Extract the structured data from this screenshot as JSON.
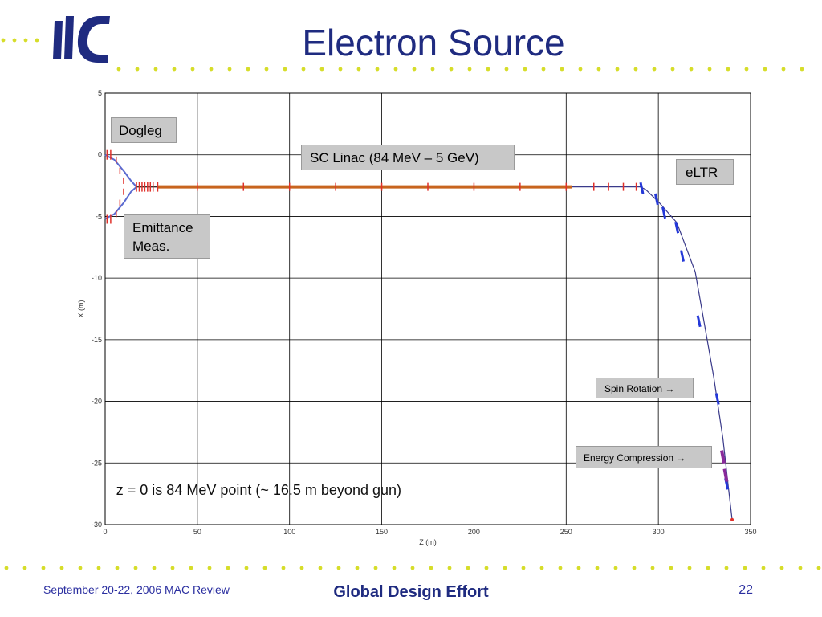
{
  "slide": {
    "title": "Electron Source",
    "logo_text": "ilc",
    "footer": {
      "date_text": "September 20-22, 2006     MAC Review",
      "center_text": "Global Design Effort",
      "page_number": "22"
    },
    "colors": {
      "title": "#1f2b80",
      "logo": "#1f2b80",
      "dots": "#d6dd2a",
      "beamline": "#c8641e",
      "magnet_red": "#e0302a",
      "magnet_blue": "#2438d8",
      "magnet_purple": "#8a2a9a",
      "label_bg": "#c8c8c8"
    }
  },
  "chart_data": {
    "type": "line",
    "title": "",
    "xlabel": "Z (m)",
    "ylabel": "X (m)",
    "xlim": [
      0,
      350
    ],
    "ylim": [
      -30,
      5
    ],
    "xticks": [
      0,
      50,
      100,
      150,
      200,
      250,
      300,
      350
    ],
    "yticks": [
      5,
      0,
      -5,
      -10,
      -15,
      -20,
      -25,
      -30
    ],
    "grid": true,
    "annotation": "z = 0 is 84 MeV point (~ 16.5 m beyond gun)",
    "labels": [
      {
        "text": "Dogleg"
      },
      {
        "text": "SC Linac (84 MeV – 5 GeV)"
      },
      {
        "text": "eLTR"
      },
      {
        "text": "Emittance Meas."
      },
      {
        "text": "Spin Rotation →"
      },
      {
        "text": "Energy Compression →"
      }
    ],
    "series": [
      {
        "values_upper_branch": [
          [
            0,
            0
          ],
          [
            5,
            -0.4
          ],
          [
            10,
            -1.3
          ],
          [
            14,
            -2.1
          ],
          [
            17,
            -2.6
          ]
        ]
      },
      {
        "values_lower_branch": [
          [
            0,
            -5.2
          ],
          [
            5,
            -4.8
          ],
          [
            10,
            -3.9
          ],
          [
            14,
            -3.0
          ],
          [
            17,
            -2.6
          ]
        ]
      },
      {
        "values_main": [
          [
            17,
            -2.6
          ],
          [
            100,
            -2.6
          ],
          [
            200,
            -2.6
          ],
          [
            253,
            -2.6
          ],
          [
            290,
            -2.6
          ],
          [
            293,
            -2.8
          ],
          [
            300,
            -3.8
          ],
          [
            310,
            -5.5
          ],
          [
            320,
            -9.5
          ],
          [
            330,
            -18
          ],
          [
            335,
            -23
          ],
          [
            338,
            -27
          ],
          [
            340,
            -29.6
          ]
        ]
      }
    ]
  }
}
